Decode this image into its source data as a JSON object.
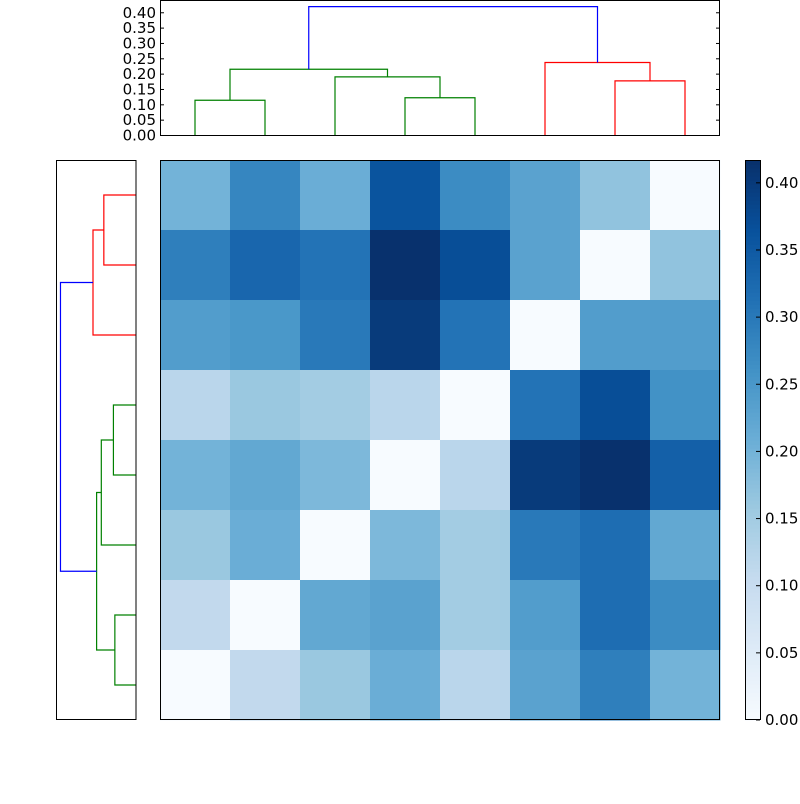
{
  "chart_data": [
    {
      "type": "dendrogram",
      "orientation": "top",
      "ylim": [
        0,
        0.44
      ],
      "yticks": [
        "0.00",
        "0.05",
        "0.10",
        "0.15",
        "0.20",
        "0.25",
        "0.30",
        "0.35",
        "0.40"
      ],
      "leaf_positions": [
        5,
        15,
        25,
        35,
        45,
        55,
        65,
        75
      ],
      "links": [
        {
          "icoord": [
            5,
            5,
            15,
            15
          ],
          "dcoord": [
            0,
            0.115,
            0.115,
            0
          ],
          "color": "#008000"
        },
        {
          "icoord": [
            35,
            35,
            45,
            45
          ],
          "dcoord": [
            0,
            0.123,
            0.123,
            0
          ],
          "color": "#008000"
        },
        {
          "icoord": [
            25,
            25,
            40,
            40
          ],
          "dcoord": [
            0,
            0.191,
            0.191,
            0.123
          ],
          "color": "#008000"
        },
        {
          "icoord": [
            10,
            10,
            32.5,
            32.5
          ],
          "dcoord": [
            0.115,
            0.216,
            0.216,
            0.191
          ],
          "color": "#008000"
        },
        {
          "icoord": [
            65,
            65,
            75,
            75
          ],
          "dcoord": [
            0,
            0.178,
            0.178,
            0
          ],
          "color": "#ff0000"
        },
        {
          "icoord": [
            55,
            55,
            70,
            70
          ],
          "dcoord": [
            0,
            0.238,
            0.238,
            0.178
          ],
          "color": "#ff0000"
        },
        {
          "icoord": [
            21.25,
            21.25,
            62.5,
            62.5
          ],
          "dcoord": [
            0.216,
            0.42,
            0.42,
            0.238
          ],
          "color": "#0000ff"
        }
      ]
    },
    {
      "type": "dendrogram",
      "orientation": "left",
      "xlim": [
        0.44,
        0
      ],
      "leaf_positions": [
        5,
        15,
        25,
        35,
        45,
        55,
        65,
        75
      ],
      "links": [
        {
          "icoord": [
            5,
            5,
            15,
            15
          ],
          "dcoord": [
            0,
            0.117,
            0.117,
            0
          ],
          "color": "#008000"
        },
        {
          "icoord": [
            35,
            35,
            45,
            45
          ],
          "dcoord": [
            0,
            0.125,
            0.125,
            0
          ],
          "color": "#008000"
        },
        {
          "icoord": [
            25,
            25,
            40,
            40
          ],
          "dcoord": [
            0,
            0.192,
            0.192,
            0.125
          ],
          "color": "#008000"
        },
        {
          "icoord": [
            10,
            10,
            32.5,
            32.5
          ],
          "dcoord": [
            0.117,
            0.218,
            0.218,
            0.192
          ],
          "color": "#008000"
        },
        {
          "icoord": [
            65,
            65,
            75,
            75
          ],
          "dcoord": [
            0,
            0.178,
            0.178,
            0
          ],
          "color": "#ff0000"
        },
        {
          "icoord": [
            55,
            55,
            70,
            70
          ],
          "dcoord": [
            0,
            0.238,
            0.238,
            0.178
          ],
          "color": "#ff0000"
        },
        {
          "icoord": [
            21.25,
            21.25,
            62.5,
            62.5
          ],
          "dcoord": [
            0.218,
            0.418,
            0.418,
            0.238
          ],
          "color": "#0000ff"
        }
      ]
    },
    {
      "type": "heatmap",
      "colormap": "Blues",
      "vmin": 0,
      "vmax": 0.417,
      "values": [
        [
          0.2,
          0.28,
          0.21,
          0.36,
          0.27,
          0.23,
          0.17,
          0.0
        ],
        [
          0.29,
          0.33,
          0.31,
          0.415,
          0.37,
          0.23,
          0.0,
          0.17
        ],
        [
          0.24,
          0.25,
          0.3,
          0.4,
          0.31,
          0.0,
          0.24,
          0.24
        ],
        [
          0.12,
          0.16,
          0.15,
          0.12,
          0.0,
          0.31,
          0.37,
          0.26
        ],
        [
          0.2,
          0.22,
          0.19,
          0.0,
          0.12,
          0.4,
          0.415,
          0.34
        ],
        [
          0.16,
          0.21,
          0.0,
          0.19,
          0.15,
          0.3,
          0.32,
          0.22
        ],
        [
          0.11,
          0.0,
          0.22,
          0.23,
          0.15,
          0.24,
          0.32,
          0.27
        ],
        [
          0.0,
          0.11,
          0.16,
          0.21,
          0.12,
          0.23,
          0.29,
          0.2
        ]
      ],
      "colorbar": {
        "ticks": [
          0,
          0.05,
          0.1,
          0.15,
          0.2,
          0.25,
          0.3,
          0.35,
          0.4
        ],
        "tick_labels": [
          "0.00",
          "0.05",
          "0.10",
          "0.15",
          "0.20",
          "0.25",
          "0.30",
          "0.35",
          "0.40"
        ]
      }
    }
  ]
}
